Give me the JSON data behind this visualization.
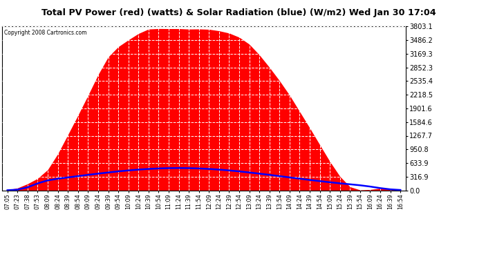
{
  "title": "Total PV Power (red) (watts) & Solar Radiation (blue) (W/m2) Wed Jan 30 17:04",
  "copyright": "Copyright 2008 Cartronics.com",
  "y_max": 3803.1,
  "y_min": 0.0,
  "y_ticks": [
    0.0,
    316.9,
    633.9,
    950.8,
    1267.7,
    1584.6,
    1901.6,
    2218.5,
    2535.4,
    2852.3,
    3169.3,
    3486.2,
    3803.1
  ],
  "x_labels": [
    "07:05",
    "07:23",
    "07:38",
    "07:53",
    "08:09",
    "08:24",
    "08:39",
    "08:54",
    "09:09",
    "09:24",
    "09:39",
    "09:54",
    "10:09",
    "10:24",
    "10:39",
    "10:54",
    "11:09",
    "11:24",
    "11:39",
    "11:54",
    "12:09",
    "12:24",
    "12:39",
    "12:54",
    "13:09",
    "13:24",
    "13:39",
    "13:54",
    "14:09",
    "14:24",
    "14:39",
    "14:54",
    "15:09",
    "15:24",
    "15:39",
    "15:54",
    "16:09",
    "16:24",
    "16:39",
    "16:54"
  ],
  "background_color": "#ffffff",
  "plot_bg_color": "#ffffff",
  "grid_color": "#cccccc",
  "red_color": "#ff0000",
  "blue_color": "#0000ff",
  "title_bg": "#e8e8e8",
  "pv_peak": 3750.0,
  "solar_peak": 520.0
}
